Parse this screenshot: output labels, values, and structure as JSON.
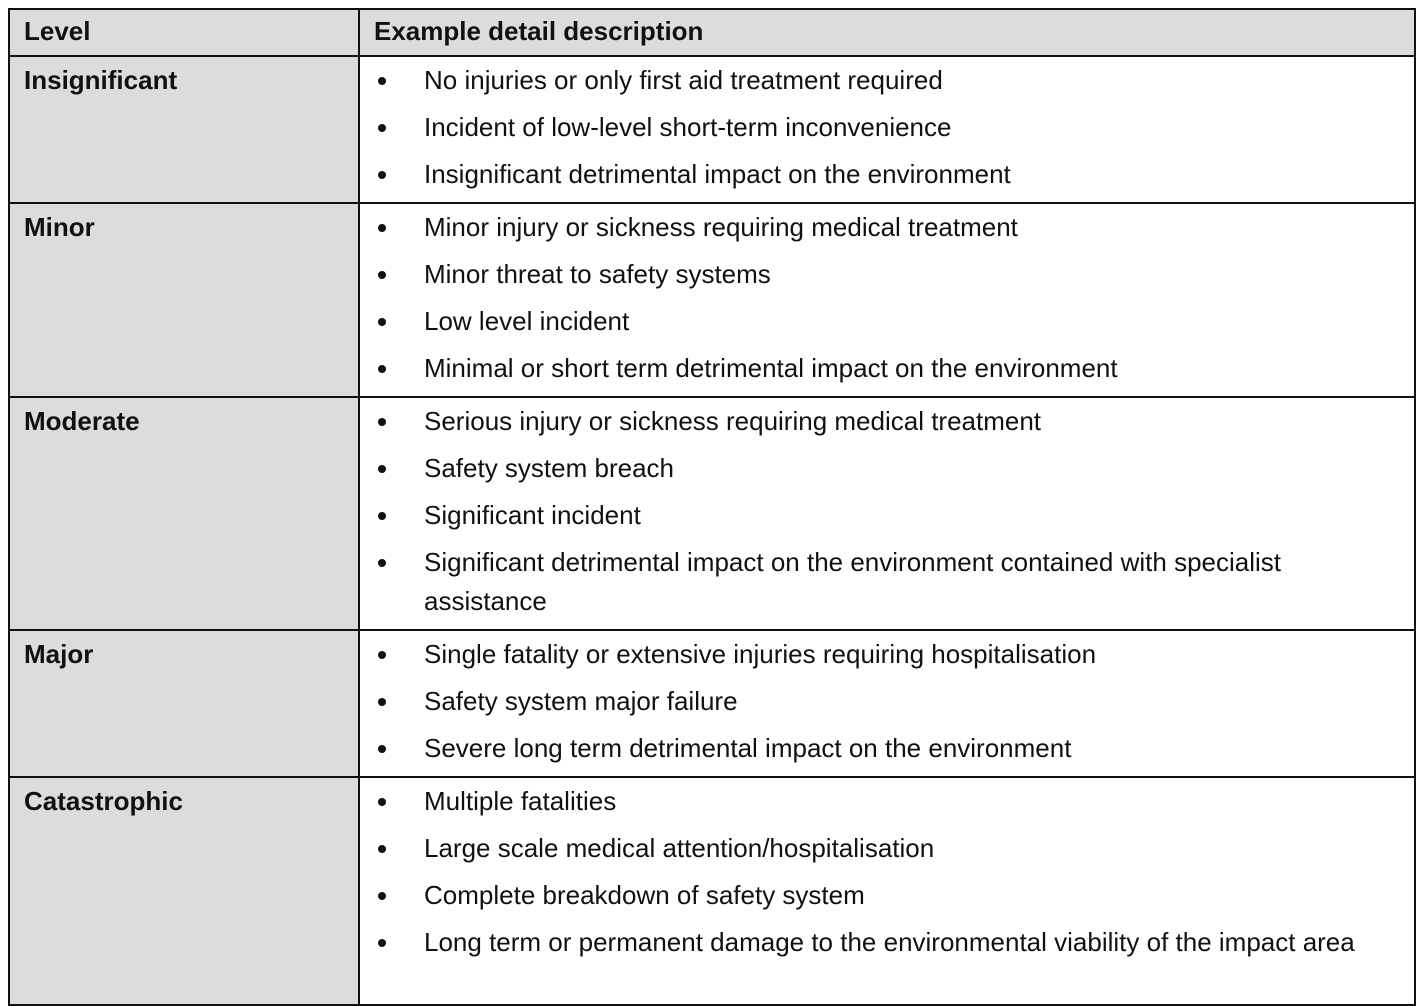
{
  "table": {
    "columns": [
      "Level",
      "Example detail description"
    ],
    "rows": [
      {
        "level": "Insignificant",
        "items": [
          "No injuries or only first aid treatment required",
          "Incident of low-level short-term inconvenience",
          "Insignificant detrimental impact on the environment"
        ]
      },
      {
        "level": "Minor",
        "items": [
          "Minor injury or sickness requiring medical treatment",
          "Minor threat to safety systems",
          "Low level incident",
          "Minimal or short term detrimental impact on the environment"
        ]
      },
      {
        "level": "Moderate",
        "items": [
          "Serious injury or sickness requiring medical treatment",
          "Safety system breach",
          "Significant incident",
          "Significant detrimental impact on the environment contained with specialist assistance"
        ]
      },
      {
        "level": "Major",
        "items": [
          "Single fatality or extensive injuries requiring hospitalisation",
          "Safety system major failure",
          "Severe long term detrimental impact on the environment"
        ]
      },
      {
        "level": "Catastrophic",
        "items": [
          "Multiple fatalities",
          "Large scale medical attention/hospitalisation",
          "Complete breakdown of safety system",
          "Long term or permanent damage to the environmental viability of the impact area"
        ]
      }
    ]
  }
}
